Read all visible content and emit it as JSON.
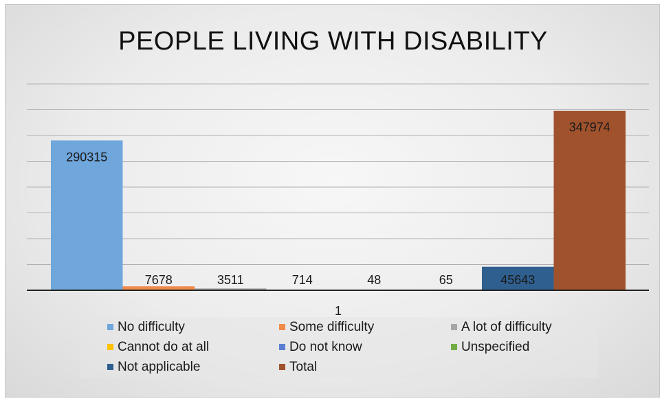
{
  "chart_data": {
    "type": "bar",
    "title": "PEOPLE LIVING WITH DISABILITY",
    "categories": [
      "1"
    ],
    "xlabel": "",
    "ylabel": "",
    "ylim": [
      0,
      400000
    ],
    "grid": true,
    "legend_position": "bottom",
    "series": [
      {
        "name": "No difficulty",
        "values": [
          290315
        ],
        "color": "#6fa6dc"
      },
      {
        "name": "Some difficulty",
        "values": [
          7678
        ],
        "color": "#f08a4b"
      },
      {
        "name": "A lot of difficulty",
        "values": [
          3511
        ],
        "color": "#a6a6a6"
      },
      {
        "name": "Cannot do at all",
        "values": [
          714
        ],
        "color": "#ffc000"
      },
      {
        "name": "Do not know",
        "values": [
          48
        ],
        "color": "#5b7fd1"
      },
      {
        "name": "Unspecified",
        "values": [
          65
        ],
        "color": "#70ad47"
      },
      {
        "name": "Not applicable",
        "values": [
          45643
        ],
        "color": "#2f5f8f"
      },
      {
        "name": "Total",
        "values": [
          347974
        ],
        "color": "#a0522d"
      }
    ]
  }
}
